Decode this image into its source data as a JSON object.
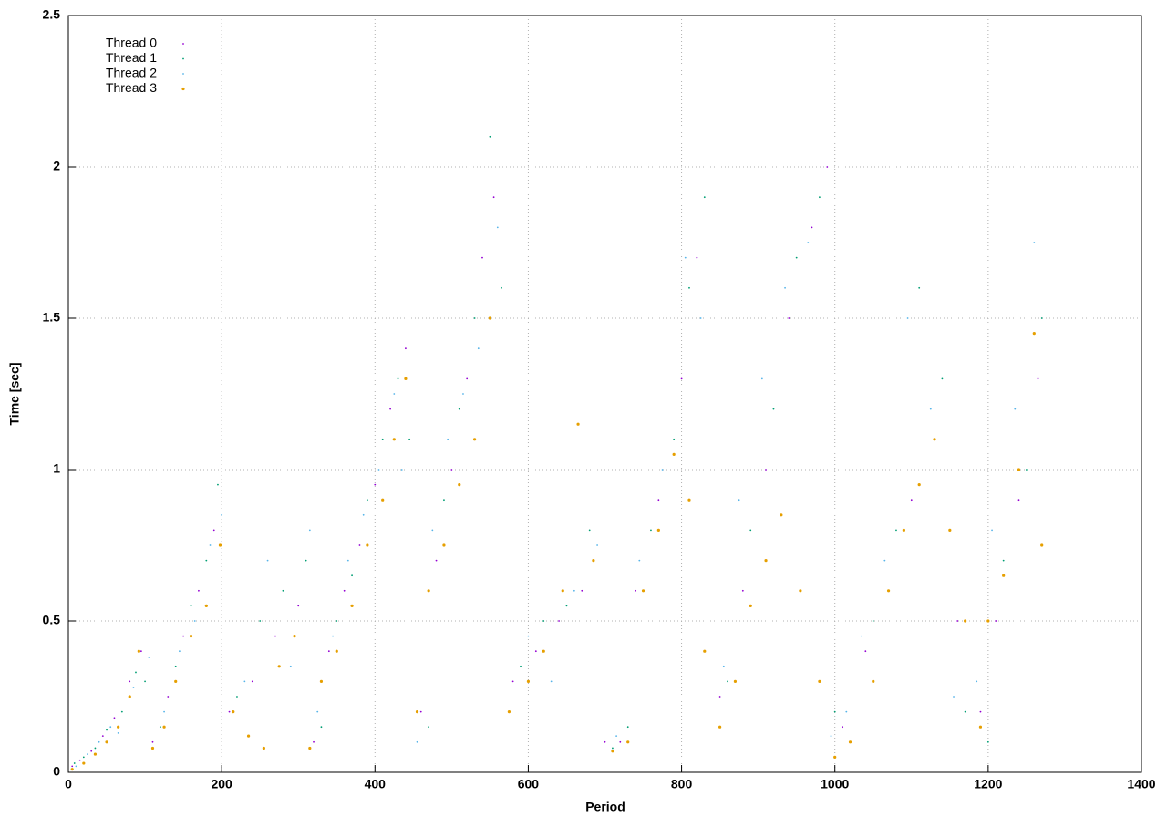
{
  "chart_data": {
    "type": "scatter",
    "x_label": "Period",
    "y_label": "Time [sec]",
    "xlim": [
      0,
      1400
    ],
    "ylim": [
      0,
      2.5
    ],
    "xticks": [
      0,
      200,
      400,
      600,
      800,
      1000,
      1200,
      1400
    ],
    "yticks": [
      0,
      0.5,
      1,
      1.5,
      2,
      2.5
    ],
    "grid": true,
    "legend": "top-left",
    "series": [
      {
        "name": "Thread 0",
        "color": "#9400d3",
        "x": [
          5,
          15,
          30,
          45,
          60,
          80,
          95,
          110,
          130,
          150,
          170,
          190,
          210,
          240,
          270,
          300,
          320,
          340,
          360,
          380,
          400,
          420,
          440,
          460,
          480,
          500,
          520,
          540,
          555,
          580,
          610,
          640,
          670,
          700,
          720,
          740,
          770,
          800,
          820,
          850,
          880,
          910,
          940,
          970,
          990,
          1010,
          1040,
          1070,
          1100,
          1130,
          1160,
          1190,
          1210,
          1240,
          1265
        ],
        "values": [
          0.02,
          0.04,
          0.07,
          0.12,
          0.18,
          0.3,
          0.4,
          0.1,
          0.25,
          0.45,
          0.6,
          0.8,
          0.2,
          0.3,
          0.45,
          0.55,
          0.1,
          0.4,
          0.6,
          0.75,
          0.95,
          1.2,
          1.4,
          0.2,
          0.7,
          1.0,
          1.3,
          1.7,
          1.9,
          0.3,
          0.4,
          0.5,
          0.6,
          0.1,
          0.1,
          0.6,
          0.9,
          1.3,
          1.7,
          0.25,
          0.6,
          1.0,
          1.5,
          1.8,
          2.0,
          0.15,
          0.4,
          0.6,
          0.9,
          1.1,
          0.5,
          0.2,
          0.5,
          0.9,
          1.3
        ]
      },
      {
        "name": "Thread 1",
        "color": "#009e73",
        "x": [
          8,
          20,
          35,
          50,
          70,
          88,
          100,
          120,
          140,
          160,
          180,
          195,
          220,
          250,
          280,
          310,
          330,
          350,
          370,
          390,
          410,
          430,
          445,
          470,
          490,
          510,
          530,
          550,
          565,
          590,
          620,
          650,
          680,
          710,
          730,
          760,
          790,
          810,
          830,
          860,
          890,
          920,
          950,
          980,
          1000,
          1020,
          1050,
          1080,
          1110,
          1140,
          1170,
          1200,
          1220,
          1250,
          1270
        ],
        "values": [
          0.03,
          0.05,
          0.08,
          0.14,
          0.2,
          0.33,
          0.3,
          0.15,
          0.35,
          0.55,
          0.7,
          0.95,
          0.25,
          0.5,
          0.6,
          0.7,
          0.15,
          0.5,
          0.65,
          0.9,
          1.1,
          1.3,
          1.1,
          0.15,
          0.9,
          1.2,
          1.5,
          2.1,
          1.6,
          0.35,
          0.5,
          0.55,
          0.8,
          0.08,
          0.15,
          0.8,
          1.1,
          1.6,
          1.9,
          0.3,
          0.8,
          1.2,
          1.7,
          1.9,
          0.2,
          0.1,
          0.5,
          0.8,
          1.6,
          1.3,
          0.2,
          0.1,
          0.7,
          1.0,
          1.5
        ]
      },
      {
        "name": "Thread 2",
        "color": "#56b4e9",
        "x": [
          10,
          25,
          40,
          55,
          65,
          85,
          105,
          125,
          145,
          165,
          185,
          200,
          230,
          260,
          290,
          315,
          325,
          345,
          365,
          385,
          405,
          425,
          435,
          455,
          475,
          495,
          515,
          535,
          560,
          600,
          630,
          660,
          690,
          715,
          745,
          775,
          805,
          825,
          855,
          875,
          905,
          935,
          965,
          995,
          1015,
          1035,
          1065,
          1095,
          1125,
          1155,
          1185,
          1205,
          1235,
          1260
        ],
        "values": [
          0.02,
          0.06,
          0.1,
          0.15,
          0.13,
          0.28,
          0.38,
          0.2,
          0.4,
          0.5,
          0.75,
          0.85,
          0.3,
          0.7,
          0.35,
          0.8,
          0.2,
          0.45,
          0.7,
          0.85,
          1.0,
          1.25,
          1.0,
          0.1,
          0.8,
          1.1,
          1.25,
          1.4,
          1.8,
          0.45,
          0.3,
          0.6,
          0.75,
          0.12,
          0.7,
          1.0,
          1.7,
          1.5,
          0.35,
          0.9,
          1.3,
          1.6,
          1.75,
          0.12,
          0.2,
          0.45,
          0.7,
          1.5,
          1.2,
          0.25,
          0.3,
          0.8,
          1.2,
          1.75
        ]
      },
      {
        "name": "Thread 3",
        "color": "#e69f00",
        "x": [
          5,
          20,
          35,
          50,
          65,
          80,
          92,
          110,
          125,
          140,
          160,
          180,
          198,
          215,
          235,
          255,
          275,
          295,
          315,
          330,
          350,
          370,
          390,
          410,
          425,
          440,
          455,
          470,
          490,
          510,
          530,
          550,
          575,
          600,
          620,
          645,
          665,
          685,
          710,
          730,
          750,
          770,
          790,
          810,
          830,
          850,
          870,
          890,
          910,
          930,
          955,
          980,
          1000,
          1020,
          1050,
          1070,
          1090,
          1110,
          1130,
          1150,
          1170,
          1190,
          1200,
          1220,
          1240,
          1260,
          1270
        ],
        "values": [
          0.01,
          0.03,
          0.06,
          0.1,
          0.15,
          0.25,
          0.4,
          0.08,
          0.15,
          0.3,
          0.45,
          0.55,
          0.75,
          0.2,
          0.12,
          0.08,
          0.35,
          0.45,
          0.08,
          0.3,
          0.4,
          0.55,
          0.75,
          0.9,
          1.1,
          1.3,
          0.2,
          0.6,
          0.75,
          0.95,
          1.1,
          1.5,
          0.2,
          0.3,
          0.4,
          0.6,
          1.15,
          0.7,
          0.07,
          0.1,
          0.6,
          0.8,
          1.05,
          0.9,
          0.4,
          0.15,
          0.3,
          0.55,
          0.7,
          0.85,
          0.6,
          0.3,
          0.05,
          0.1,
          0.3,
          0.6,
          0.8,
          0.95,
          1.1,
          0.8,
          0.5,
          0.15,
          0.5,
          0.65,
          1.0,
          1.45,
          0.75
        ]
      }
    ]
  }
}
